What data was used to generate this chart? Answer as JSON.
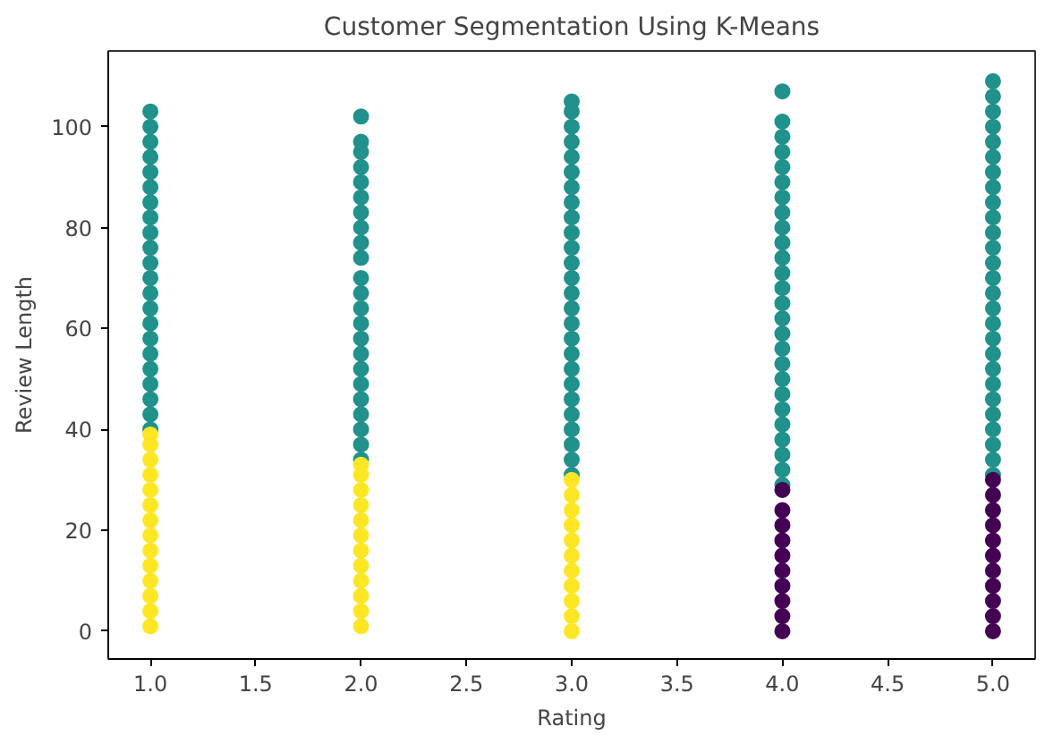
{
  "chart_data": {
    "type": "scatter",
    "title": "Customer Segmentation Using K-Means",
    "xlabel": "Rating",
    "ylabel": "Review Length",
    "xlim": [
      0.8,
      5.2
    ],
    "ylim": [
      -5.5,
      115
    ],
    "xticks": [
      {
        "value": 1,
        "label": "1.0"
      },
      {
        "value": 1.5,
        "label": "1.5"
      },
      {
        "value": 2,
        "label": "2.0"
      },
      {
        "value": 2.5,
        "label": "2.5"
      },
      {
        "value": 3,
        "label": "3.0"
      },
      {
        "value": 3.5,
        "label": "3.5"
      },
      {
        "value": 4,
        "label": "4.0"
      },
      {
        "value": 4.5,
        "label": "4.5"
      },
      {
        "value": 5,
        "label": "5.0"
      }
    ],
    "yticks": [
      0,
      20,
      40,
      60,
      80,
      100
    ],
    "grid": false,
    "marker": "circle",
    "series": [
      {
        "color": "#21918c",
        "x": [
          1,
          1,
          1,
          1,
          1,
          1,
          1,
          1,
          1,
          1,
          1,
          1,
          1,
          1,
          1,
          1,
          1,
          1,
          1,
          1,
          1,
          1,
          2,
          2,
          2,
          2,
          2,
          2,
          2,
          2,
          2,
          2,
          2,
          2,
          2,
          2,
          2,
          2,
          2,
          2,
          2,
          2,
          2,
          2,
          2,
          3,
          3,
          3,
          3,
          3,
          3,
          3,
          3,
          3,
          3,
          3,
          3,
          3,
          3,
          3,
          3,
          3,
          3,
          3,
          3,
          3,
          3,
          3,
          3,
          3,
          3,
          4,
          4,
          4,
          4,
          4,
          4,
          4,
          4,
          4,
          4,
          4,
          4,
          4,
          4,
          4,
          4,
          4,
          4,
          4,
          4,
          4,
          4,
          4,
          4,
          4,
          4,
          5,
          5,
          5,
          5,
          5,
          5,
          5,
          5,
          5,
          5,
          5,
          5,
          5,
          5,
          5,
          5,
          5,
          5,
          5,
          5,
          5,
          5,
          5,
          5,
          5,
          5,
          5
        ],
        "values": [
          40,
          43,
          46,
          49,
          52,
          55,
          58,
          61,
          64,
          67,
          70,
          73,
          76,
          79,
          82,
          85,
          88,
          91,
          94,
          97,
          100,
          103,
          34,
          37,
          40,
          43,
          46,
          49,
          52,
          55,
          58,
          61,
          64,
          67,
          70,
          74,
          77,
          80,
          83,
          86,
          89,
          92,
          95,
          97,
          102,
          31,
          34,
          37,
          40,
          43,
          46,
          49,
          52,
          55,
          58,
          61,
          64,
          67,
          70,
          73,
          76,
          79,
          82,
          85,
          88,
          91,
          94,
          97,
          100,
          103,
          105,
          29,
          32,
          35,
          38,
          41,
          44,
          47,
          50,
          53,
          56,
          59,
          62,
          65,
          68,
          71,
          74,
          77,
          80,
          83,
          86,
          89,
          92,
          95,
          98,
          101,
          107,
          31,
          34,
          37,
          40,
          43,
          46,
          49,
          52,
          55,
          58,
          61,
          64,
          67,
          70,
          73,
          76,
          79,
          82,
          85,
          88,
          91,
          94,
          97,
          100,
          103,
          106,
          109
        ]
      },
      {
        "color": "#fde725",
        "x": [
          1,
          1,
          1,
          1,
          1,
          1,
          1,
          1,
          1,
          1,
          1,
          1,
          1,
          1,
          2,
          2,
          2,
          2,
          2,
          2,
          2,
          2,
          2,
          2,
          2,
          2,
          3,
          3,
          3,
          3,
          3,
          3,
          3,
          3,
          3,
          3,
          3
        ],
        "values": [
          1,
          4,
          7,
          10,
          13,
          16,
          19,
          22,
          25,
          28,
          31,
          34,
          37,
          39,
          1,
          4,
          7,
          10,
          13,
          16,
          19,
          22,
          25,
          28,
          31,
          33,
          0,
          3,
          6,
          9,
          12,
          15,
          18,
          21,
          24,
          27,
          30
        ]
      },
      {
        "color": "#440154",
        "x": [
          4,
          4,
          4,
          4,
          4,
          4,
          4,
          4,
          4,
          4,
          5,
          5,
          5,
          5,
          5,
          5,
          5,
          5,
          5,
          5,
          5
        ],
        "values": [
          0,
          3,
          6,
          9,
          12,
          15,
          18,
          21,
          24,
          28,
          0,
          3,
          6,
          9,
          12,
          15,
          18,
          21,
          24,
          27,
          30
        ]
      }
    ]
  }
}
